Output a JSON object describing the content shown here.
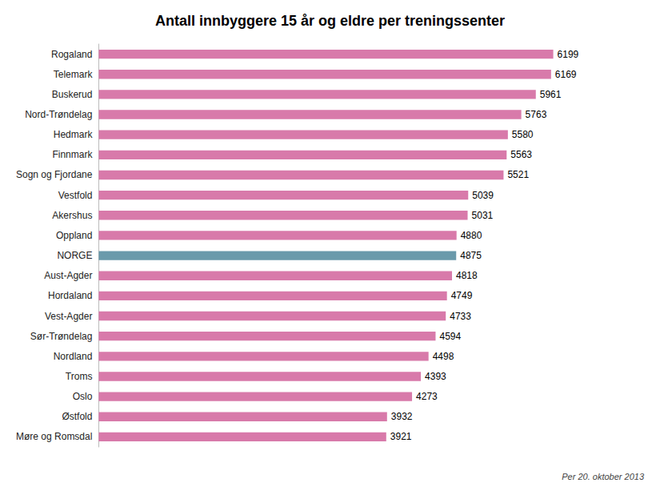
{
  "chart_data": {
    "type": "bar",
    "orientation": "horizontal",
    "title": "Antall innbyggere 15 år og eldre per treningssenter",
    "categories": [
      "Møre og Romsdal",
      "Østfold",
      "Oslo",
      "Troms",
      "Nordland",
      "Sør-Trøndelag",
      "Vest-Agder",
      "Hordaland",
      "Aust-Agder",
      "NORGE",
      "Oppland",
      "Akershus",
      "Vestfold",
      "Sogn og Fjordane",
      "Finnmark",
      "Hedmark",
      "Nord-Trøndelag",
      "Buskerud",
      "Telemark",
      "Rogaland"
    ],
    "values": [
      3921,
      3932,
      4273,
      4393,
      4498,
      4594,
      4733,
      4749,
      4818,
      4875,
      4880,
      5031,
      5039,
      5521,
      5563,
      5580,
      5763,
      5961,
      6169,
      6199
    ],
    "colors": [
      "#d87aaa",
      "#d87aaa",
      "#d87aaa",
      "#d87aaa",
      "#d87aaa",
      "#d87aaa",
      "#d87aaa",
      "#d87aaa",
      "#d87aaa",
      "#6a9aab",
      "#d87aaa",
      "#d87aaa",
      "#d87aaa",
      "#d87aaa",
      "#d87aaa",
      "#d87aaa",
      "#d87aaa",
      "#d87aaa",
      "#d87aaa",
      "#d87aaa"
    ],
    "xlim": [
      0,
      7000
    ],
    "data_labels": true,
    "tick_labels": "y",
    "grid": false,
    "annotations": [
      "Per 20. oktober 2013"
    ]
  }
}
